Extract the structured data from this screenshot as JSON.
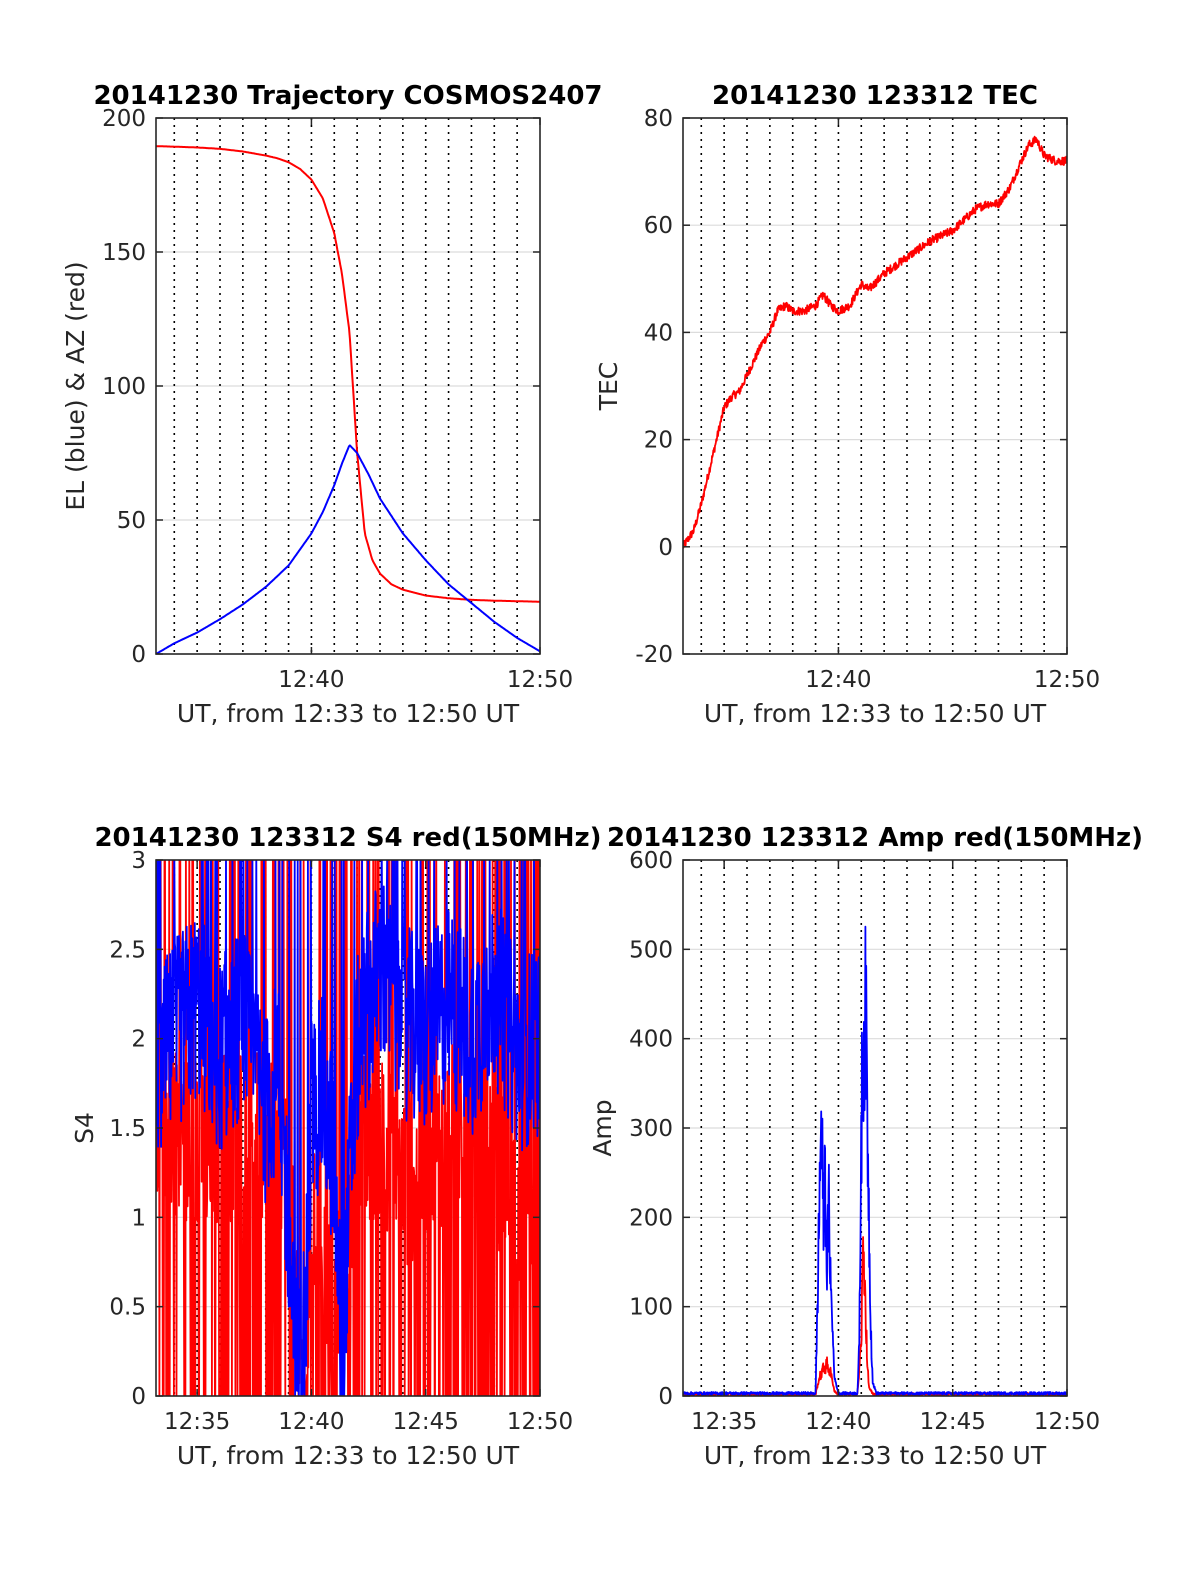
{
  "colors": {
    "red": "#ff0000",
    "blue": "#0000ff",
    "grid": "#dcdcdc",
    "axis": "#262626"
  },
  "chart_data": [
    {
      "id": "p1",
      "type": "line",
      "title": "20141230 Trajectory COSMOS2407",
      "xlabel": "UT, from 12:33 to 12:50 UT",
      "ylabel": "EL (blue) & AZ (red)",
      "xlim": [
        "12:33:12",
        "12:50:00"
      ],
      "ylim": [
        0,
        200
      ],
      "yticks": [
        0,
        50,
        100,
        150,
        200
      ],
      "xticks": [
        "12:40",
        "12:50"
      ],
      "grid": true,
      "series": [
        {
          "color": "#ff0000",
          "label_role": "AZ",
          "x": [
            "12:33:12",
            "12:34",
            "12:35",
            "12:36",
            "12:37",
            "12:38",
            "12:38:30",
            "12:39",
            "12:39:30",
            "12:40",
            "12:40:30",
            "12:41",
            "12:41:20",
            "12:41:40",
            "12:42",
            "12:42:20",
            "12:42:40",
            "12:43",
            "12:43:30",
            "12:44",
            "12:45",
            "12:46",
            "12:47",
            "12:48",
            "12:50"
          ],
          "y": [
            189.5,
            189.3,
            189,
            188.5,
            187.5,
            186,
            185,
            183.5,
            181,
            177,
            170,
            157,
            142,
            120,
            75,
            45,
            35,
            30,
            26,
            24,
            21.8,
            20.8,
            20.2,
            19.9,
            19.5
          ]
        },
        {
          "color": "#0000ff",
          "label_role": "EL",
          "x": [
            "12:33:12",
            "12:34",
            "12:35",
            "12:36",
            "12:37",
            "12:38",
            "12:39",
            "12:40",
            "12:40:30",
            "12:41",
            "12:41:20",
            "12:41:40",
            "12:42",
            "12:42:30",
            "12:43",
            "12:44",
            "12:45",
            "12:46",
            "12:47",
            "12:48",
            "12:49",
            "12:50"
          ],
          "y": [
            0,
            4,
            8,
            13,
            18.5,
            25,
            33,
            45,
            53,
            63,
            71,
            78,
            75,
            67,
            58,
            45,
            35,
            26,
            19,
            12,
            6,
            1
          ]
        }
      ]
    },
    {
      "id": "p2",
      "type": "line",
      "title": "20141230 123312 TEC",
      "xlabel": "UT, from 12:33 to 12:50 UT",
      "ylabel": "TEC",
      "xlim": [
        "12:33:12",
        "12:50:00"
      ],
      "ylim": [
        -20,
        80
      ],
      "yticks": [
        -20,
        0,
        20,
        40,
        60,
        80
      ],
      "xticks": [
        "12:40",
        "12:50"
      ],
      "grid": true,
      "series": [
        {
          "color": "#ff0000",
          "x": [
            "12:33:12",
            "12:33:40",
            "12:34",
            "12:34:20",
            "12:34:40",
            "12:35",
            "12:35:20",
            "12:35:40",
            "12:36",
            "12:36:20",
            "12:36:40",
            "12:37",
            "12:37:20",
            "12:37:40",
            "12:38",
            "12:38:30",
            "12:39",
            "12:39:20",
            "12:39:40",
            "12:40",
            "12:40:30",
            "12:41",
            "12:41:20",
            "12:42",
            "12:43",
            "12:44",
            "12:45",
            "12:45:30",
            "12:46",
            "12:46:30",
            "12:47",
            "12:47:30",
            "12:48",
            "12:48:20",
            "12:48:40",
            "12:49",
            "12:49:30",
            "12:50"
          ],
          "y": [
            0,
            3,
            8,
            14,
            20,
            26,
            28,
            29,
            32,
            35,
            38,
            40,
            44,
            45,
            44,
            44,
            45,
            47,
            45,
            44,
            45,
            49,
            48,
            51,
            54,
            57,
            59,
            61,
            63,
            64,
            64,
            67,
            72,
            75,
            76,
            73,
            72,
            72
          ]
        }
      ]
    },
    {
      "id": "p3",
      "type": "line",
      "title": "20141230 123312 S4 red(150MHz)",
      "xlabel": "UT, from 12:33 to 12:50 UT",
      "ylabel": "S4",
      "xlim": [
        "12:33:12",
        "12:50:00"
      ],
      "ylim": [
        0,
        3
      ],
      "yticks": [
        0,
        0.5,
        1,
        1.5,
        2,
        2.5,
        3
      ],
      "xticks": [
        "12:35",
        "12:40",
        "12:45",
        "12:50"
      ],
      "grid": true,
      "series": [
        {
          "color": "#ff0000",
          "x": [
            "12:33:12",
            "12:35",
            "12:37",
            "12:38",
            "12:39",
            "12:39:30",
            "12:39:50",
            "12:40",
            "12:40:30",
            "12:41",
            "12:41:20",
            "12:41:40",
            "12:42",
            "12:43",
            "12:44",
            "12:45",
            "12:46",
            "12:47",
            "12:48",
            "12:49",
            "12:50"
          ],
          "y": [
            1.6,
            1.4,
            1.5,
            1.4,
            1.4,
            0.15,
            0.3,
            0.9,
            0.9,
            0.25,
            0.9,
            0.9,
            1.4,
            1.5,
            1.2,
            1.3,
            1.5,
            1.4,
            1.3,
            1.1,
            1.2
          ]
        },
        {
          "color": "#0000ff",
          "x": [
            "12:33:12",
            "12:34",
            "12:35",
            "12:36",
            "12:37",
            "12:38",
            "12:38:30",
            "12:39",
            "12:39:20",
            "12:39:30",
            "12:39:45",
            "12:40",
            "12:40:30",
            "12:41",
            "12:41:20",
            "12:41:40",
            "12:42",
            "12:42:30",
            "12:43",
            "12:44",
            "12:45",
            "12:46",
            "12:47",
            "12:48",
            "12:49",
            "12:50"
          ],
          "y": [
            1.8,
            2.0,
            2.2,
            1.9,
            2.1,
            1.6,
            1.8,
            1.0,
            0.15,
            0.1,
            0.5,
            1.6,
            1.7,
            1.3,
            0.12,
            1.2,
            1.9,
            2.2,
            2.4,
            2.1,
            2.0,
            2.2,
            2.0,
            2.3,
            1.9,
            2.0
          ]
        }
      ]
    },
    {
      "id": "p4",
      "type": "line",
      "title": "20141230 123312 Amp red(150MHz)",
      "xlabel": "UT, from 12:33 to 12:50 UT",
      "ylabel": "Amp",
      "xlim": [
        "12:33:12",
        "12:50:00"
      ],
      "ylim": [
        0,
        600
      ],
      "yticks": [
        0,
        100,
        200,
        300,
        400,
        500,
        600
      ],
      "xticks": [
        "12:35",
        "12:40",
        "12:45",
        "12:50"
      ],
      "grid": true,
      "series": [
        {
          "color": "#ff0000",
          "x": [
            "12:33:12",
            "12:39:00",
            "12:39:10",
            "12:39:20",
            "12:39:30",
            "12:39:40",
            "12:39:50",
            "12:40:00",
            "12:40:50",
            "12:41:00",
            "12:41:05",
            "12:41:10",
            "12:41:15",
            "12:41:20",
            "12:41:30",
            "12:50"
          ],
          "y": [
            2,
            2,
            20,
            30,
            35,
            25,
            5,
            2,
            2,
            60,
            170,
            120,
            40,
            10,
            2,
            2
          ]
        },
        {
          "color": "#0000ff",
          "x": [
            "12:33:12",
            "12:39:00",
            "12:39:05",
            "12:39:10",
            "12:39:15",
            "12:39:20",
            "12:39:25",
            "12:39:30",
            "12:39:35",
            "12:39:40",
            "12:39:50",
            "12:40:00",
            "12:40:50",
            "12:40:55",
            "12:41:00",
            "12:41:05",
            "12:41:10",
            "12:41:15",
            "12:41:20",
            "12:41:25",
            "12:41:30",
            "12:41:40",
            "12:50"
          ],
          "y": [
            3,
            3,
            100,
            220,
            320,
            200,
            240,
            150,
            210,
            120,
            20,
            3,
            3,
            60,
            300,
            390,
            437,
            350,
            200,
            80,
            15,
            3,
            3
          ]
        }
      ]
    }
  ]
}
